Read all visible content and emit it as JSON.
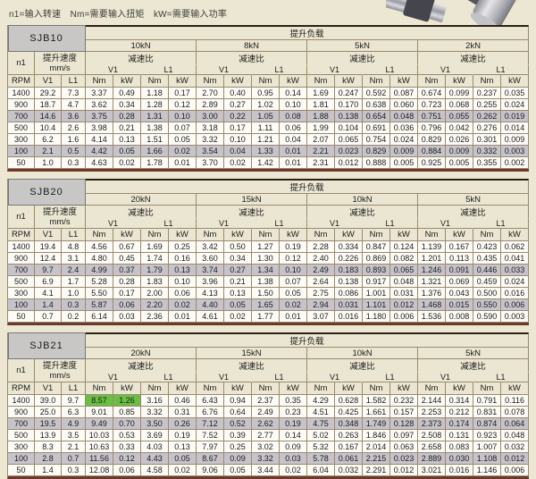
{
  "legend": "n1=输入转速　Nm=需要输入扭矩　kW=需要输入功率",
  "labels": {
    "load_header": "提升负载",
    "ratio": "减速比",
    "speed": "提升速度",
    "speed_unit": "mm/s",
    "n1": "n1",
    "rpm": "RPM",
    "v1": "V1",
    "l1": "L1",
    "nm": "Nm",
    "kw": "kW"
  },
  "icons": {
    "photo": "gearmotor-product-photo"
  },
  "colors": {
    "page_bg": "#ece7d2",
    "header_bg": "#ebe6d1",
    "row_shade": "#c6c3cb",
    "highlight_green": "#6abe45",
    "border_tan": "#9b8a6e",
    "top_rule": "#2a2014",
    "bottom_rule": "#6e392a",
    "model_cell": "#c9c6c6"
  },
  "tables": [
    {
      "model": "SJB10",
      "loads": [
        "10kN",
        "8kN",
        "5kN",
        "2kN"
      ],
      "rows": [
        {
          "rpm": "1400",
          "v1": "29.2",
          "l1": "7.3",
          "shaded": false,
          "values": [
            "3.37",
            "0.49",
            "1.18",
            "0.17",
            "2.70",
            "0.40",
            "0.95",
            "0.14",
            "1.69",
            "0.247",
            "0.592",
            "0.087",
            "0.674",
            "0.099",
            "0.237",
            "0.035"
          ]
        },
        {
          "rpm": "900",
          "v1": "18.7",
          "l1": "4.7",
          "shaded": false,
          "values": [
            "3.62",
            "0.34",
            "1.28",
            "0.12",
            "2.89",
            "0.27",
            "1.02",
            "0.10",
            "1.81",
            "0.170",
            "0.638",
            "0.060",
            "0.723",
            "0.068",
            "0.255",
            "0.024"
          ]
        },
        {
          "rpm": "700",
          "v1": "14.6",
          "l1": "3.6",
          "shaded": true,
          "values": [
            "3.75",
            "0.28",
            "1.31",
            "0.10",
            "3.00",
            "0.22",
            "1.05",
            "0.08",
            "1.88",
            "0.138",
            "0.654",
            "0.048",
            "0.751",
            "0.055",
            "0.262",
            "0.019"
          ]
        },
        {
          "rpm": "500",
          "v1": "10.4",
          "l1": "2.6",
          "shaded": false,
          "values": [
            "3.98",
            "0.21",
            "1.38",
            "0.07",
            "3.18",
            "0.17",
            "1.11",
            "0.06",
            "1.99",
            "0.104",
            "0.691",
            "0.036",
            "0.796",
            "0.042",
            "0.276",
            "0.014"
          ]
        },
        {
          "rpm": "300",
          "v1": "6.2",
          "l1": "1.6",
          "shaded": false,
          "values": [
            "4.14",
            "0.13",
            "1.51",
            "0.05",
            "3.32",
            "0.10",
            "1.21",
            "0.04",
            "2.07",
            "0.065",
            "0.754",
            "0.024",
            "0.829",
            "0.026",
            "0.301",
            "0.009"
          ]
        },
        {
          "rpm": "100",
          "v1": "2.1",
          "l1": "0.5",
          "shaded": true,
          "values": [
            "4.42",
            "0.05",
            "1.66",
            "0.02",
            "3.54",
            "0.04",
            "1.33",
            "0.01",
            "2.21",
            "0.023",
            "0.829",
            "0.009",
            "0.884",
            "0.009",
            "0.332",
            "0.003"
          ]
        },
        {
          "rpm": "50",
          "v1": "1.0",
          "l1": "0.3",
          "shaded": false,
          "values": [
            "4.63",
            "0.02",
            "1.78",
            "0.01",
            "3.70",
            "0.02",
            "1.42",
            "0.01",
            "2.31",
            "0.012",
            "0.888",
            "0.005",
            "0.925",
            "0.005",
            "0.355",
            "0.002"
          ]
        }
      ]
    },
    {
      "model": "SJB20",
      "loads": [
        "20kN",
        "15kN",
        "10kN",
        "5kN"
      ],
      "rows": [
        {
          "rpm": "1400",
          "v1": "19.4",
          "l1": "4.8",
          "shaded": false,
          "values": [
            "4.56",
            "0.67",
            "1.69",
            "0.25",
            "3.42",
            "0.50",
            "1.27",
            "0.19",
            "2.28",
            "0.334",
            "0.847",
            "0.124",
            "1.139",
            "0.167",
            "0.423",
            "0.062"
          ]
        },
        {
          "rpm": "900",
          "v1": "12.4",
          "l1": "3.1",
          "shaded": false,
          "values": [
            "4.80",
            "0.45",
            "1.74",
            "0.16",
            "3.60",
            "0.34",
            "1.30",
            "0.12",
            "2.40",
            "0.226",
            "0.869",
            "0.082",
            "1.201",
            "0.113",
            "0.435",
            "0.041"
          ]
        },
        {
          "rpm": "700",
          "v1": "9.7",
          "l1": "2.4",
          "shaded": true,
          "values": [
            "4.99",
            "0.37",
            "1.79",
            "0.13",
            "3.74",
            "0.27",
            "1.34",
            "0.10",
            "2.49",
            "0.183",
            "0.893",
            "0.065",
            "1.246",
            "0.091",
            "0.446",
            "0.033"
          ]
        },
        {
          "rpm": "500",
          "v1": "6.9",
          "l1": "1.7",
          "shaded": false,
          "values": [
            "5.28",
            "0.28",
            "1.83",
            "0.10",
            "3.96",
            "0.21",
            "1.38",
            "0.07",
            "2.64",
            "0.138",
            "0.917",
            "0.048",
            "1.321",
            "0.069",
            "0.459",
            "0.024"
          ]
        },
        {
          "rpm": "300",
          "v1": "4.1",
          "l1": "1.0",
          "shaded": false,
          "values": [
            "5.50",
            "0.17",
            "2.00",
            "0.06",
            "4.13",
            "0.13",
            "1.50",
            "0.05",
            "2.75",
            "0.086",
            "1.001",
            "0.031",
            "1.376",
            "0.043",
            "0.500",
            "0.016"
          ]
        },
        {
          "rpm": "100",
          "v1": "1.4",
          "l1": "0.3",
          "shaded": true,
          "values": [
            "5.87",
            "0.06",
            "2.20",
            "0.02",
            "4.40",
            "0.05",
            "1.65",
            "0.02",
            "2.94",
            "0.031",
            "1.101",
            "0.012",
            "1.468",
            "0.015",
            "0.550",
            "0.006"
          ]
        },
        {
          "rpm": "50",
          "v1": "0.7",
          "l1": "0.2",
          "shaded": false,
          "values": [
            "6.14",
            "0.03",
            "2.36",
            "0.01",
            "4.61",
            "0.02",
            "1.77",
            "0.01",
            "3.07",
            "0.016",
            "1.180",
            "0.006",
            "1.536",
            "0.008",
            "0.590",
            "0.003"
          ]
        }
      ]
    },
    {
      "model": "SJB21",
      "loads": [
        "20kN",
        "15kN",
        "10kN",
        "5kN"
      ],
      "rows": [
        {
          "rpm": "1400",
          "v1": "39.0",
          "l1": "9.7",
          "shaded": false,
          "highlight": [
            0,
            1
          ],
          "values": [
            "8.57",
            "1.26",
            "3.16",
            "0.46",
            "6.43",
            "0.94",
            "2.37",
            "0.35",
            "4.29",
            "0.628",
            "1.582",
            "0.232",
            "2.144",
            "0.314",
            "0.791",
            "0.116"
          ]
        },
        {
          "rpm": "900",
          "v1": "25.0",
          "l1": "6.3",
          "shaded": false,
          "values": [
            "9.01",
            "0.85",
            "3.32",
            "0.31",
            "6.76",
            "0.64",
            "2.49",
            "0.23",
            "4.51",
            "0.425",
            "1.661",
            "0.157",
            "2.253",
            "0.212",
            "0.831",
            "0.078"
          ]
        },
        {
          "rpm": "700",
          "v1": "19.5",
          "l1": "4.9",
          "shaded": true,
          "values": [
            "9.49",
            "0.70",
            "3.50",
            "0.26",
            "7.12",
            "0.52",
            "2.62",
            "0.19",
            "4.75",
            "0.348",
            "1.749",
            "0.128",
            "2.373",
            "0.174",
            "0.874",
            "0.064"
          ]
        },
        {
          "rpm": "500",
          "v1": "13.9",
          "l1": "3.5",
          "shaded": false,
          "values": [
            "10.03",
            "0.53",
            "3.69",
            "0.19",
            "7.52",
            "0.39",
            "2.77",
            "0.14",
            "5.02",
            "0.263",
            "1.846",
            "0.097",
            "2.508",
            "0.131",
            "0.923",
            "0.048"
          ]
        },
        {
          "rpm": "300",
          "v1": "8.3",
          "l1": "2.1",
          "shaded": false,
          "values": [
            "10.63",
            "0.33",
            "4.03",
            "0.13",
            "7.97",
            "0.25",
            "3.02",
            "0.09",
            "5.32",
            "0.167",
            "2.014",
            "0.063",
            "2.658",
            "0.083",
            "1.007",
            "0.032"
          ]
        },
        {
          "rpm": "100",
          "v1": "2.8",
          "l1": "0.7",
          "shaded": true,
          "values": [
            "11.56",
            "0.12",
            "4.43",
            "0.05",
            "8.67",
            "0.09",
            "3.32",
            "0.03",
            "5.78",
            "0.061",
            "2.215",
            "0.023",
            "2.889",
            "0.030",
            "1.108",
            "0.012"
          ]
        },
        {
          "rpm": "50",
          "v1": "1.4",
          "l1": "0.3",
          "shaded": false,
          "values": [
            "12.08",
            "0.06",
            "4.58",
            "0.02",
            "9.06",
            "0.05",
            "3.44",
            "0.02",
            "6.04",
            "0.032",
            "2.291",
            "0.012",
            "3.021",
            "0.016",
            "1.146",
            "0.006"
          ]
        }
      ]
    }
  ]
}
